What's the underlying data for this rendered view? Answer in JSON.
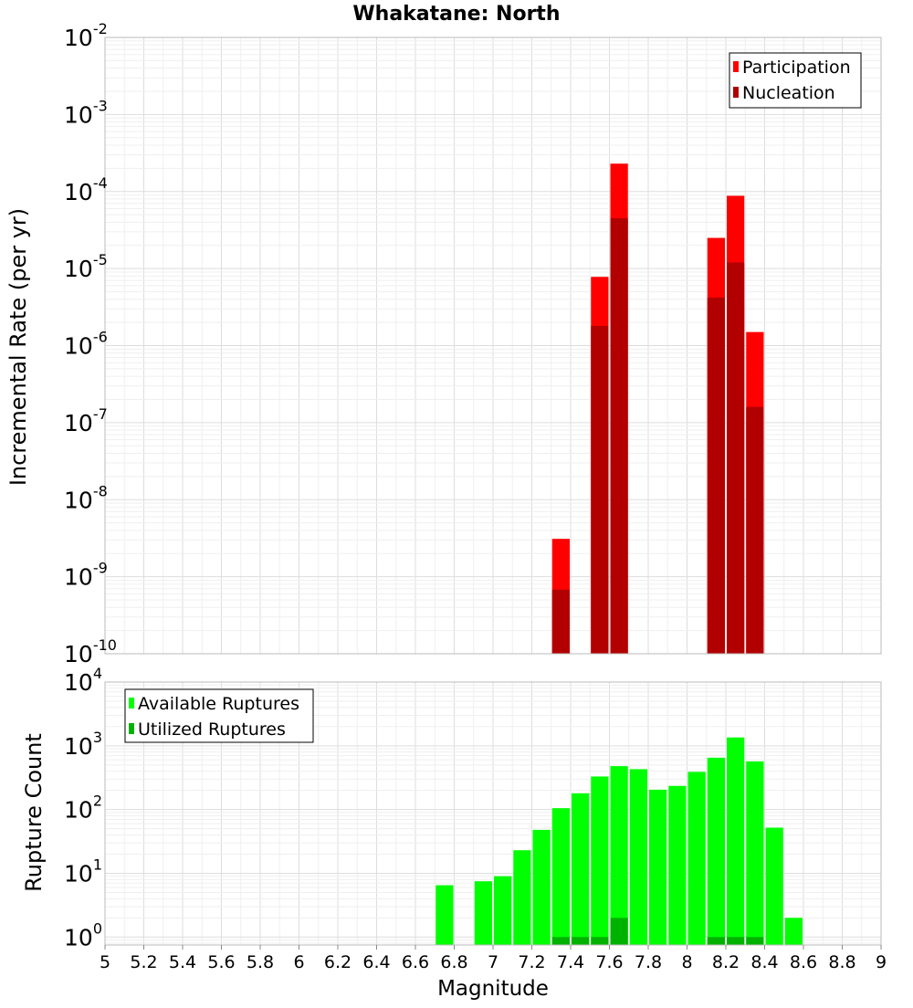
{
  "title": "Whakatane: North",
  "xlabel": "Magnitude",
  "chart_data": [
    {
      "type": "bar",
      "panel": "top",
      "ylabel": "Incremental Rate (per yr)",
      "yscale": "log",
      "ylim": [
        1e-10,
        0.01
      ],
      "xlim": [
        5,
        9
      ],
      "bar_width": 0.1,
      "y_tick_exponents": [
        "-10",
        "-9",
        "-8",
        "-7",
        "-6",
        "-5",
        "-4",
        "-3",
        "-2"
      ],
      "legend_placement": "top-right",
      "series": [
        {
          "name": "Participation",
          "color": "#ff0000",
          "x": [
            7.35,
            7.55,
            7.65,
            8.15,
            8.25,
            8.35
          ],
          "values": [
            3.1e-09,
            7.8e-06,
            0.00023,
            2.5e-05,
            8.8e-05,
            1.5e-06
          ]
        },
        {
          "name": "Nucleation",
          "color": "#b20000",
          "x": [
            7.35,
            7.55,
            7.65,
            8.15,
            8.25,
            8.35
          ],
          "values": [
            6.8e-10,
            1.8e-06,
            4.5e-05,
            4.2e-06,
            1.2e-05,
            1.6e-07
          ]
        }
      ]
    },
    {
      "type": "bar",
      "panel": "bottom",
      "ylabel": "Rupture Count",
      "yscale": "log",
      "ylim": [
        0.75,
        10000.0
      ],
      "xlim": [
        5,
        9
      ],
      "bar_width": 0.1,
      "y_tick_exponents": [
        "0",
        "1",
        "2",
        "3",
        "4"
      ],
      "legend_placement": "top-left",
      "series": [
        {
          "name": "Available Ruptures",
          "color": "#00ff00",
          "x": [
            6.75,
            6.95,
            7.05,
            7.15,
            7.25,
            7.35,
            7.45,
            7.55,
            7.65,
            7.75,
            7.85,
            7.95,
            8.05,
            8.15,
            8.25,
            8.35,
            8.45,
            8.55
          ],
          "values": [
            6.5,
            7.5,
            9,
            23,
            48,
            105,
            180,
            330,
            480,
            430,
            205,
            235,
            390,
            650,
            1350,
            570,
            52,
            2
          ]
        },
        {
          "name": "Utilized Ruptures",
          "color": "#00b200",
          "x": [
            7.35,
            7.45,
            7.55,
            7.65,
            8.15,
            8.25,
            8.35
          ],
          "values": [
            1,
            1,
            1,
            2,
            1,
            1,
            1
          ]
        }
      ]
    }
  ],
  "x_ticks": [
    "5",
    "5.2",
    "5.4",
    "5.6",
    "5.8",
    "6",
    "6.2",
    "6.4",
    "6.6",
    "6.8",
    "7",
    "7.2",
    "7.4",
    "7.6",
    "7.8",
    "8",
    "8.2",
    "8.4",
    "8.6",
    "8.8",
    "9"
  ],
  "y_tick_base": "10"
}
